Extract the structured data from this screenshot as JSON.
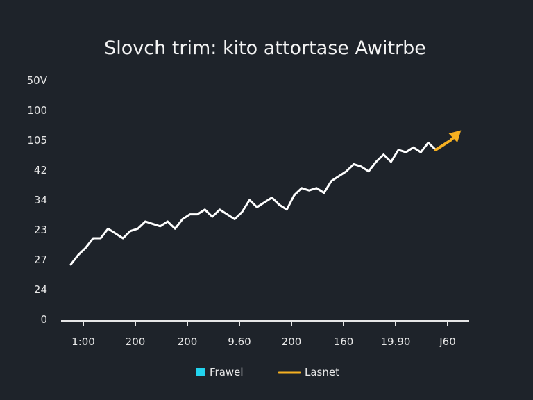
{
  "chart_data": {
    "type": "line",
    "title": "Slovch trim: kito attortase Awitrbe",
    "xlabel": "",
    "ylabel": "",
    "grid": false,
    "legend_placement": "bottom-center",
    "y_tick_labels": [
      "0",
      "24",
      "27",
      "23",
      "34",
      "42",
      "105",
      "100",
      "50V"
    ],
    "x_tick_labels": [
      "1:00",
      "200",
      "200",
      "9.60",
      "200",
      "160",
      "19.90",
      "J60"
    ],
    "legend": [
      {
        "name": "Frawel",
        "marker": "square",
        "color": "#22d3ee"
      },
      {
        "name": "Lasnet",
        "marker": "line",
        "color": "#f5b021"
      }
    ],
    "series": [
      {
        "color": "#ffffff",
        "arrow_color": "#f5b021",
        "values": [
          2.3,
          2.7,
          3.0,
          3.4,
          3.4,
          3.8,
          3.6,
          3.4,
          3.7,
          3.8,
          4.1,
          4.0,
          3.9,
          4.1,
          3.8,
          4.2,
          4.4,
          4.4,
          4.6,
          4.3,
          4.6,
          4.4,
          4.2,
          4.5,
          5.0,
          4.7,
          4.9,
          5.1,
          4.8,
          4.6,
          5.2,
          5.5,
          5.4,
          5.5,
          5.3,
          5.8,
          6.0,
          6.2,
          6.5,
          6.4,
          6.2,
          6.6,
          6.9,
          6.6,
          7.1,
          7.0,
          7.2,
          7.0,
          7.4,
          7.1,
          7.3,
          7.5,
          7.8
        ]
      }
    ]
  }
}
